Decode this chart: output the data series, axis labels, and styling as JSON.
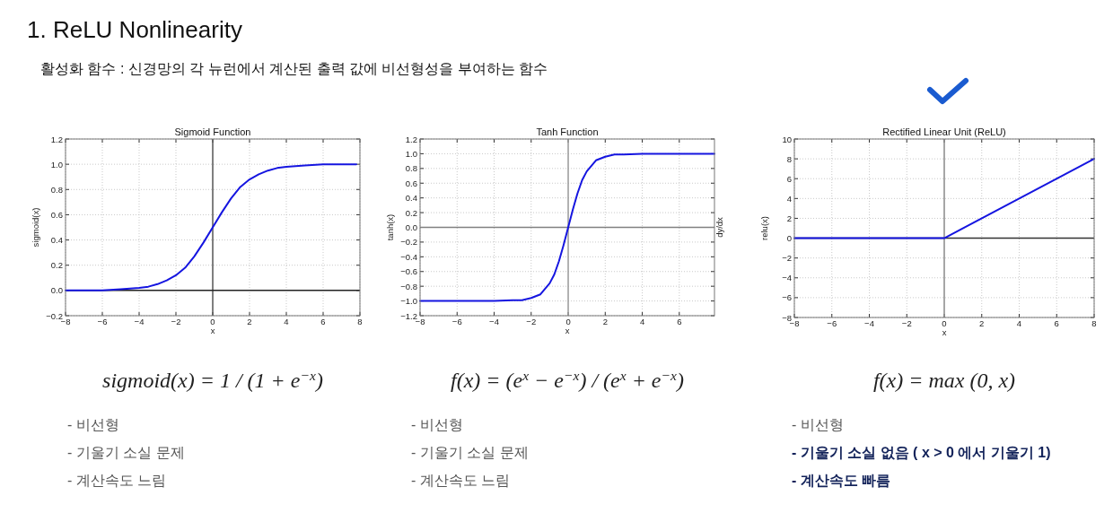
{
  "chart_data": [
    {
      "type": "other",
      "title": "1. ReLU Nonlinearity",
      "subtitle": "활성화 함수 : 신경망의 각 뉴런에서 계산된 출력 값에 비선형성을 부여하는 함수"
    },
    {
      "type": "line",
      "title": "Sigmoid Function",
      "xlabel": "x",
      "ylabel": "sigmoid(x)",
      "grid": true,
      "line_style": "solid",
      "marker": "none",
      "x": [
        -8,
        -6,
        -5,
        -4,
        -3.5,
        -3,
        -2.5,
        -2,
        -1.5,
        -1,
        -0.5,
        0,
        0.5,
        1,
        1.5,
        2,
        2.5,
        3,
        3.5,
        4,
        5,
        6,
        7.8
      ],
      "series": [
        {
          "color": "#1515e0",
          "values": [
            0.0,
            0.0,
            0.01,
            0.02,
            0.03,
            0.05,
            0.08,
            0.12,
            0.18,
            0.27,
            0.38,
            0.5,
            0.62,
            0.73,
            0.82,
            0.88,
            0.92,
            0.95,
            0.97,
            0.98,
            0.99,
            1.0,
            1.0
          ]
        }
      ],
      "xlim": [
        -8,
        8
      ],
      "xticks": [
        {
          "value": -8,
          "label": "−8"
        },
        {
          "value": -6,
          "label": "−6"
        },
        {
          "value": -4,
          "label": "−4"
        },
        {
          "value": -2,
          "label": "−2"
        },
        0,
        2,
        4,
        6,
        8
      ],
      "ylim": [
        -0.2,
        1.2
      ],
      "yticks": [
        {
          "value": -0.2,
          "label": "−0.2"
        },
        {
          "value": 0,
          "label": "0.0"
        },
        {
          "value": 0.2,
          "label": "0.2"
        },
        {
          "value": 0.4,
          "label": "0.4"
        },
        {
          "value": 0.6,
          "label": "0.6"
        },
        {
          "value": 0.8,
          "label": "0.8"
        },
        {
          "value": 1,
          "label": "1.0"
        },
        {
          "value": 1.2,
          "label": "1.2"
        }
      ],
      "ref_lines": [
        {
          "axis": "x",
          "value": 0,
          "color": "#555555"
        },
        {
          "axis": "y",
          "value": 0,
          "color": "#222222"
        }
      ],
      "annotations": [
        "sigmoid(x) = 1 / (1 + e$^{−x}$)",
        "- 비선형",
        "- 기울기 소실 문제",
        "- 계산속도 느림"
      ]
    },
    {
      "type": "line",
      "title": "Tanh Function",
      "xlabel": "x",
      "ylabel": "tanh(x)",
      "y2label": "dy/dx",
      "grid": true,
      "line_style": "solid",
      "marker": "none",
      "x": [
        -8,
        -4,
        -3,
        -2.5,
        -2,
        -1.5,
        -1,
        -0.75,
        -0.5,
        -0.25,
        0,
        0.25,
        0.5,
        0.75,
        1,
        1.5,
        2,
        2.5,
        3,
        4,
        7.9
      ],
      "series": [
        {
          "color": "#1515e0",
          "values": [
            -1.0,
            -1.0,
            -0.99,
            -0.99,
            -0.96,
            -0.91,
            -0.76,
            -0.64,
            -0.46,
            -0.24,
            0.0,
            0.24,
            0.46,
            0.64,
            0.76,
            0.91,
            0.96,
            0.99,
            0.99,
            1.0,
            1.0
          ]
        }
      ],
      "xlim": [
        -8,
        7.9
      ],
      "xticks": [
        {
          "value": -8,
          "label": "−8"
        },
        {
          "value": -6,
          "label": "−6"
        },
        {
          "value": -4,
          "label": "−4"
        },
        {
          "value": -2,
          "label": "−2"
        },
        0,
        2,
        4,
        6
      ],
      "ylim": [
        -1.2,
        1.2
      ],
      "yticks": [
        {
          "value": -1.2,
          "label": "−1.2"
        },
        {
          "value": -1,
          "label": "−1.0"
        },
        {
          "value": -0.8,
          "label": "−0.8"
        },
        {
          "value": -0.6,
          "label": "−0.6"
        },
        {
          "value": -0.4,
          "label": "−0.4"
        },
        {
          "value": -0.2,
          "label": "−0.2"
        },
        {
          "value": 0,
          "label": "0.0"
        },
        {
          "value": 0.2,
          "label": "0.2"
        },
        {
          "value": 0.4,
          "label": "0.4"
        },
        {
          "value": 0.6,
          "label": "0.6"
        },
        {
          "value": 0.8,
          "label": "0.8"
        },
        {
          "value": 1,
          "label": "1.0"
        },
        {
          "value": 1.2,
          "label": "1.2"
        }
      ],
      "ref_lines": [
        {
          "axis": "x",
          "value": 0,
          "color": "#999999"
        },
        {
          "axis": "y",
          "value": 0,
          "color": "#808080"
        }
      ],
      "annotations": [
        "f(x) = (e$^{x}$ − e$^{−x}$) / (e$^{x}$ + e$^{−x}$)",
        "- 비선형",
        "- 기울기 소실 문제",
        "- 계산속도 느림"
      ]
    },
    {
      "type": "line",
      "title": "Rectified Linear Unit (ReLU)",
      "xlabel": "x",
      "ylabel": "relu(x)",
      "grid": true,
      "line_style": "solid",
      "marker": "none",
      "x": [
        -8,
        0,
        8
      ],
      "series": [
        {
          "color": "#1515e0",
          "values": [
            0,
            0,
            8
          ]
        }
      ],
      "xlim": [
        -8,
        8
      ],
      "xticks": [
        {
          "value": -8,
          "label": "−8"
        },
        {
          "value": -6,
          "label": "−6"
        },
        {
          "value": -4,
          "label": "−4"
        },
        {
          "value": -2,
          "label": "−2"
        },
        0,
        2,
        4,
        6,
        8
      ],
      "ylim": [
        -8,
        10
      ],
      "yticks": [
        {
          "value": -8,
          "label": "−8"
        },
        {
          "value": -6,
          "label": "−6"
        },
        {
          "value": -4,
          "label": "−4"
        },
        {
          "value": -2,
          "label": "−2"
        },
        0,
        2,
        4,
        6,
        8,
        10
      ],
      "ref_lines": [
        {
          "axis": "y",
          "value": 0,
          "color": "#333333"
        },
        {
          "axis": "x",
          "value": 0,
          "color": "#888888"
        }
      ],
      "annotations": [
        "f(x) = max (0, x)",
        "- 비선형",
        "- 기울기 소실 없음 ( x > 0 에서 기울기 1)",
        "- 계산속도 빠름"
      ]
    }
  ]
}
